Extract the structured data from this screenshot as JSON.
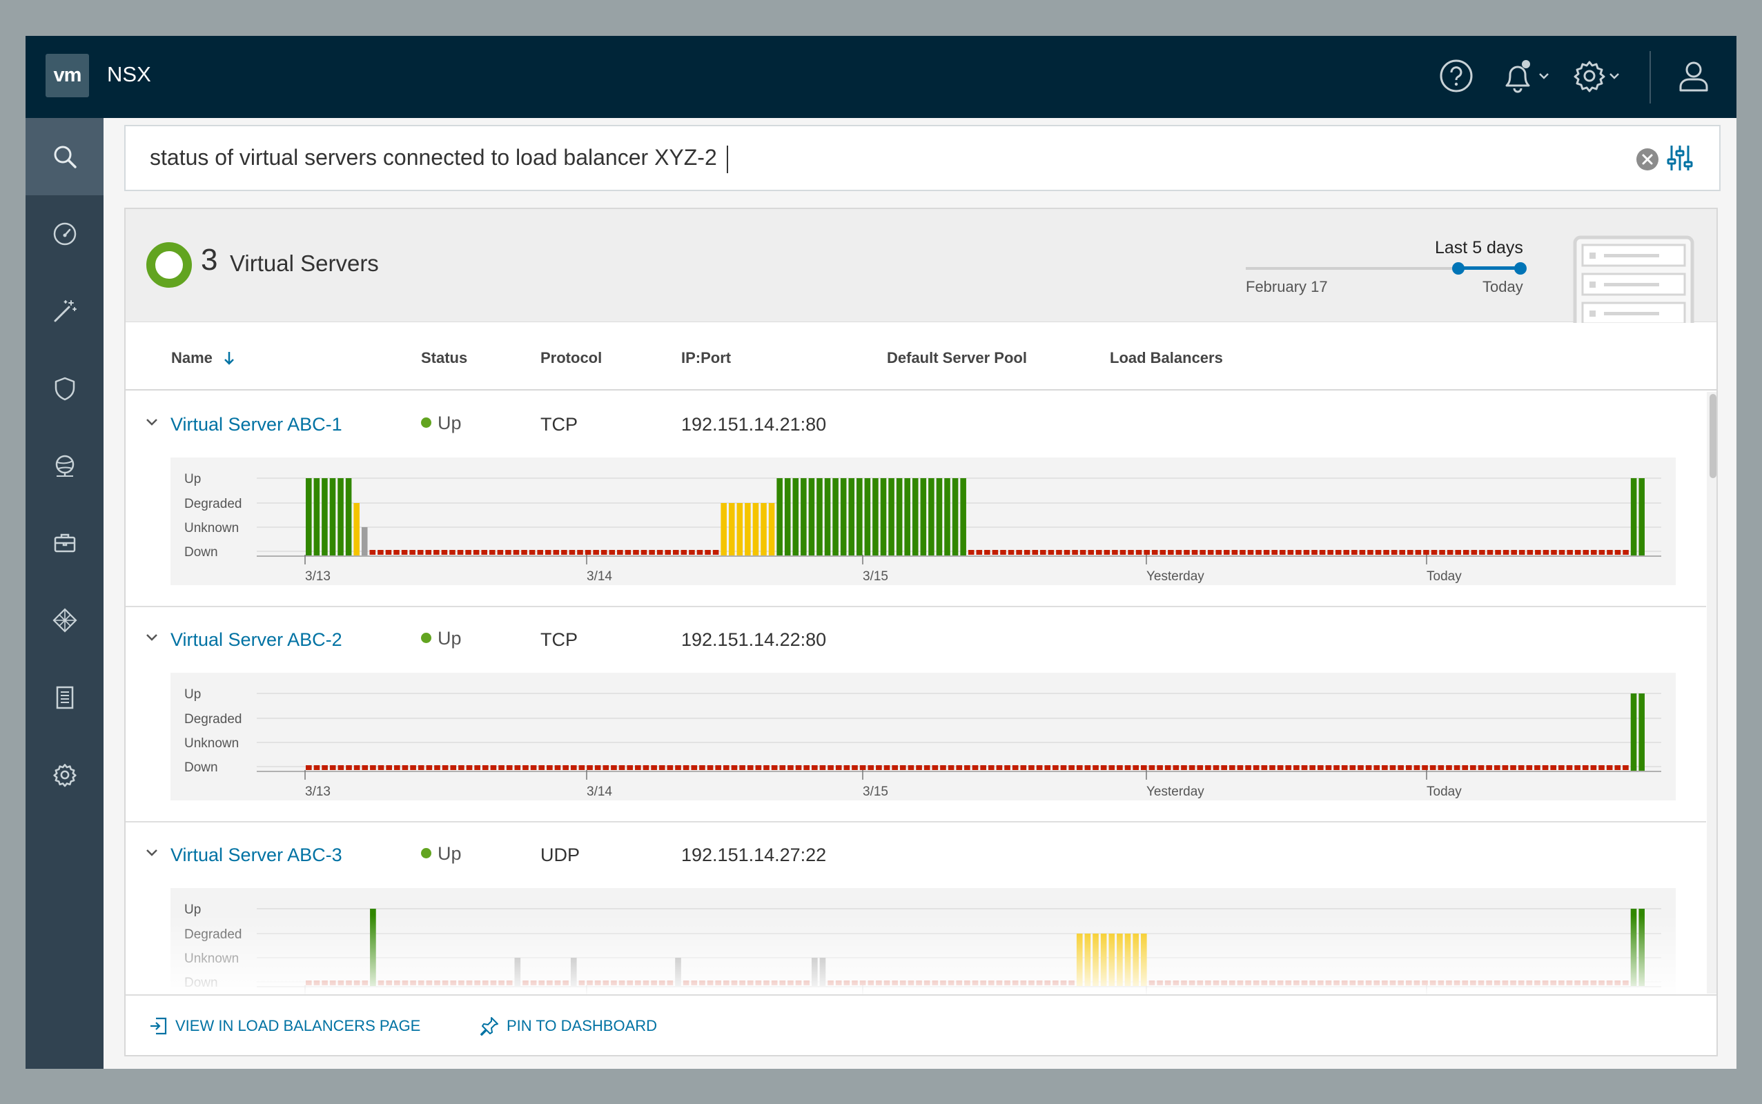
{
  "header": {
    "logo": "vm",
    "product": "NSX",
    "icons": [
      "help-icon",
      "bell-icon",
      "chevron-down-icon",
      "gear-icon",
      "chevron-down-icon",
      "user-icon"
    ]
  },
  "sidebar": {
    "items": [
      {
        "name": "search",
        "icon": "search-icon",
        "active": true
      },
      {
        "name": "dashboard",
        "icon": "speedometer-icon"
      },
      {
        "name": "magic",
        "icon": "magic-wand-icon"
      },
      {
        "name": "security",
        "icon": "shield-icon"
      },
      {
        "name": "networking",
        "icon": "network-globe-icon"
      },
      {
        "name": "inventory",
        "icon": "briefcase-icon"
      },
      {
        "name": "plan-troubleshoot",
        "icon": "diamond-grid-icon"
      },
      {
        "name": "logs",
        "icon": "list-document-icon"
      },
      {
        "name": "system",
        "icon": "gear-icon"
      }
    ]
  },
  "search": {
    "query": "status of virtual servers connected to load balancer XYZ-2"
  },
  "panel": {
    "count": "3",
    "title": "Virtual Servers",
    "range": {
      "label": "Last 5 days",
      "from": "February 17",
      "to": "Today"
    },
    "columns": [
      "Name",
      "Status",
      "Protocol",
      "IP:Port",
      "Default Server Pool",
      "Load Balancers"
    ],
    "chart_levels": [
      "Up",
      "Degraded",
      "Unknown",
      "Down"
    ],
    "chart_ticks": [
      "3/13",
      "3/14",
      "3/15",
      "Yesterday",
      "Today"
    ],
    "rows": [
      {
        "name": "Virtual Server ABC-1",
        "status": "Up",
        "protocol": "TCP",
        "ip": "192.151.14.21:80"
      },
      {
        "name": "Virtual Server ABC-2",
        "status": "Up",
        "protocol": "TCP",
        "ip": "192.151.14.22:80"
      },
      {
        "name": "Virtual Server ABC-3",
        "status": "Up",
        "protocol": "UDP",
        "ip": "192.151.14.27:22"
      }
    ],
    "actions": {
      "view": "VIEW IN LOAD BALANCERS PAGE",
      "pin": "PIN TO DASHBOARD"
    }
  },
  "colors": {
    "up": "#318700",
    "degraded": "#f5c400",
    "unknown": "#9e9e9e",
    "down": "#c21d00",
    "link": "#0072a3",
    "header": "#002538"
  },
  "chart_data": [
    {
      "type": "bar",
      "title": "Virtual Server ABC-1",
      "categories": [
        "Up",
        "Degraded",
        "Unknown",
        "Down"
      ],
      "x_ticks": [
        "3/13",
        "3/14",
        "3/15",
        "Yesterday",
        "Today"
      ],
      "segments": [
        {
          "state": "Up",
          "bars": 6
        },
        {
          "state": "Degraded",
          "bars": 1
        },
        {
          "state": "Unknown",
          "bars": 1
        },
        {
          "state": "Down",
          "bars": 44
        },
        {
          "state": "Degraded",
          "bars": 7
        },
        {
          "state": "Up",
          "bars": 24
        },
        {
          "state": "Down",
          "bars": 83
        },
        {
          "state": "Up",
          "bars": 2
        }
      ]
    },
    {
      "type": "bar",
      "title": "Virtual Server ABC-2",
      "categories": [
        "Up",
        "Degraded",
        "Unknown",
        "Down"
      ],
      "x_ticks": [
        "3/13",
        "3/14",
        "3/15",
        "Yesterday",
        "Today"
      ],
      "segments": [
        {
          "state": "Down",
          "bars": 165
        },
        {
          "state": "Up",
          "bars": 2
        }
      ]
    },
    {
      "type": "bar",
      "title": "Virtual Server ABC-3",
      "categories": [
        "Up",
        "Degraded",
        "Unknown",
        "Down"
      ],
      "x_ticks": [
        "3/13",
        "3/14",
        "3/15",
        "Yesterday",
        "Today"
      ],
      "segments": [
        {
          "state": "Down",
          "bars": 8
        },
        {
          "state": "Up",
          "bars": 1
        },
        {
          "state": "Down",
          "bars": 17
        },
        {
          "state": "Unknown",
          "bars": 1
        },
        {
          "state": "Down",
          "bars": 6
        },
        {
          "state": "Unknown",
          "bars": 1
        },
        {
          "state": "Down",
          "bars": 12
        },
        {
          "state": "Unknown",
          "bars": 1
        },
        {
          "state": "Down",
          "bars": 16
        },
        {
          "state": "Unknown",
          "bars": 2
        },
        {
          "state": "Down",
          "bars": 31
        },
        {
          "state": "Degraded",
          "bars": 9
        },
        {
          "state": "Down",
          "bars": 60
        },
        {
          "state": "Up",
          "bars": 2
        }
      ]
    }
  ]
}
